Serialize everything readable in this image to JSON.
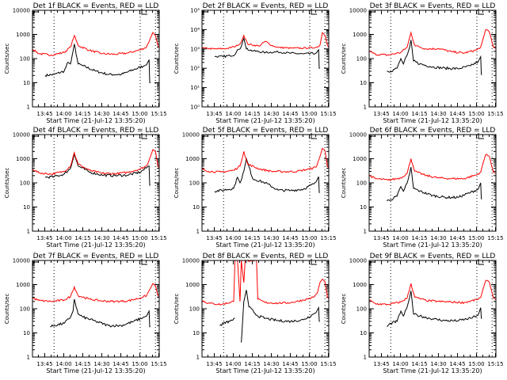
{
  "figure": {
    "legend_note": "BLACK = Events, RED = LLD",
    "xlabel": "Start Time (21-Jul-12 13:35:20)",
    "ylabel": "Counts/sec",
    "x_tick_labels": [
      "13:45",
      "14:00",
      "14:15",
      "14:30",
      "14:45",
      "15:00",
      "15:15"
    ],
    "colors": {
      "events": "#000000",
      "lld": "#ff0000",
      "frame": "#000000"
    }
  },
  "chart_data": [
    {
      "type": "line",
      "title": "Det 1f BLACK = Events, RED = LLD",
      "xlabel": "Start Time (21-Jul-12 13:35:20)",
      "ylabel": "Counts/sec",
      "yscale": "log",
      "ylim": [
        1,
        10000
      ],
      "ytick_style": "plain",
      "xlim_minutes": [
        0,
        100
      ],
      "vlines_minutes": [
        17,
        85,
        97
      ],
      "series": [
        {
          "name": "Events",
          "color": "#000000",
          "x": [
            10,
            17,
            25,
            28,
            30,
            32,
            33,
            36,
            40,
            50,
            60,
            70,
            80,
            88,
            90,
            92,
            92.5,
            93
          ],
          "y": [
            20,
            22,
            30,
            70,
            60,
            200,
            400,
            60,
            50,
            30,
            22,
            22,
            35,
            50,
            55,
            90,
            10,
            10
          ]
        },
        {
          "name": "LLD",
          "color": "#ff0000",
          "x": [
            0,
            5,
            15,
            25,
            30,
            33,
            36,
            45,
            55,
            65,
            75,
            85,
            90,
            93,
            95,
            97,
            99,
            100
          ],
          "y": [
            250,
            160,
            140,
            180,
            300,
            900,
            350,
            220,
            160,
            150,
            170,
            230,
            300,
            700,
            1200,
            900,
            350,
            280
          ]
        }
      ]
    },
    {
      "type": "line",
      "title": "Det 2f BLACK = Events, RED = LLD",
      "xlabel": "Start Time (21-Jul-12 13:35:20)",
      "ylabel": "Counts/sec",
      "yscale": "log",
      "ylim": [
        1,
        100000
      ],
      "ytick_style": "exponent",
      "xlim_minutes": [
        0,
        100
      ],
      "vlines_minutes": [
        17,
        85,
        97
      ],
      "series": [
        {
          "name": "Events",
          "color": "#000000",
          "x": [
            10,
            17,
            22,
            26,
            28,
            30,
            33,
            35,
            40,
            50,
            60,
            70,
            80,
            90,
            92,
            92.5,
            93
          ],
          "y": [
            400,
            400,
            450,
            500,
            900,
            1000,
            3500,
            1000,
            800,
            650,
            700,
            600,
            550,
            600,
            900,
            100,
            100
          ]
        },
        {
          "name": "LLD",
          "color": "#ff0000",
          "x": [
            0,
            10,
            20,
            25,
            28,
            30,
            33,
            36,
            45,
            50,
            55,
            60,
            70,
            80,
            90,
            93,
            95,
            97,
            99,
            100
          ],
          "y": [
            1100,
            1000,
            1050,
            1300,
            1500,
            1800,
            5000,
            1800,
            1400,
            2500,
            1500,
            1200,
            1100,
            1100,
            1200,
            1500,
            7000,
            5000,
            1500,
            1200
          ]
        }
      ]
    },
    {
      "type": "line",
      "title": "Det 3f BLACK = Events, RED = LLD",
      "xlabel": "Start Time (21-Jul-12 13:35:20)",
      "ylabel": "Counts/sec",
      "yscale": "log",
      "ylim": [
        1,
        10000
      ],
      "ytick_style": "plain",
      "xlim_minutes": [
        0,
        100
      ],
      "vlines_minutes": [
        17,
        85,
        97
      ],
      "series": [
        {
          "name": "Events",
          "color": "#000000",
          "x": [
            14,
            17,
            22,
            25,
            27,
            30,
            32,
            33,
            35,
            40,
            50,
            60,
            70,
            80,
            86,
            88,
            88.5,
            89
          ],
          "y": [
            30,
            30,
            40,
            100,
            60,
            140,
            300,
            600,
            80,
            60,
            45,
            40,
            38,
            50,
            75,
            120,
            22,
            22
          ]
        },
        {
          "name": "LLD",
          "color": "#ff0000",
          "x": [
            0,
            5,
            15,
            25,
            30,
            33,
            36,
            45,
            55,
            65,
            75,
            85,
            88,
            90,
            92,
            95,
            98,
            100
          ],
          "y": [
            200,
            150,
            140,
            180,
            300,
            1200,
            350,
            250,
            260,
            190,
            170,
            230,
            300,
            700,
            1600,
            1200,
            300,
            260
          ]
        }
      ]
    },
    {
      "type": "line",
      "title": "Det 4f BLACK = Events, RED = LLD",
      "xlabel": "Start Time (21-Jul-12 13:35:20)",
      "ylabel": "Counts/sec",
      "yscale": "log",
      "ylim": [
        1,
        10000
      ],
      "ytick_style": "plain",
      "xlim_minutes": [
        0,
        100
      ],
      "vlines_minutes": [
        17,
        85,
        97
      ],
      "series": [
        {
          "name": "Events",
          "color": "#000000",
          "x": [
            10,
            17,
            25,
            30,
            33,
            36,
            45,
            55,
            65,
            75,
            85,
            92,
            92.5,
            93
          ],
          "y": [
            170,
            180,
            230,
            400,
            1600,
            500,
            280,
            210,
            200,
            210,
            280,
            500,
            80,
            80
          ]
        },
        {
          "name": "LLD",
          "color": "#ff0000",
          "x": [
            0,
            5,
            15,
            25,
            30,
            33,
            36,
            45,
            55,
            65,
            75,
            85,
            90,
            93,
            95,
            97,
            99,
            100
          ],
          "y": [
            380,
            260,
            230,
            300,
            500,
            1800,
            600,
            330,
            250,
            240,
            270,
            380,
            500,
            1200,
            2400,
            2000,
            500,
            420
          ]
        }
      ]
    },
    {
      "type": "line",
      "title": "Det 5f BLACK = Events, RED = LLD",
      "xlabel": "Start Time (21-Jul-12 13:35:20)",
      "ylabel": "Counts/sec",
      "yscale": "log",
      "ylim": [
        1,
        10000
      ],
      "ytick_style": "plain",
      "xlim_minutes": [
        0,
        100
      ],
      "vlines_minutes": [
        17,
        85,
        97
      ],
      "series": [
        {
          "name": "Events",
          "color": "#000000",
          "x": [
            10,
            17,
            25,
            28,
            30,
            33,
            35,
            40,
            50,
            60,
            70,
            80,
            88,
            90,
            92,
            92.5,
            93
          ],
          "y": [
            45,
            50,
            60,
            170,
            100,
            300,
            1000,
            150,
            100,
            50,
            48,
            55,
            90,
            110,
            180,
            40,
            40
          ]
        },
        {
          "name": "LLD",
          "color": "#ff0000",
          "x": [
            0,
            5,
            15,
            25,
            30,
            33,
            36,
            45,
            55,
            65,
            75,
            85,
            90,
            93,
            95,
            97,
            99,
            100
          ],
          "y": [
            380,
            300,
            280,
            330,
            500,
            2000,
            600,
            380,
            300,
            290,
            300,
            380,
            450,
            1200,
            2700,
            2200,
            480,
            420
          ]
        }
      ]
    },
    {
      "type": "line",
      "title": "Det 6f BLACK = Events, RED = LLD",
      "xlabel": "Start Time (21-Jul-12 13:35:20)",
      "ylabel": "Counts/sec",
      "yscale": "log",
      "ylim": [
        1,
        10000
      ],
      "ytick_style": "plain",
      "xlim_minutes": [
        0,
        100
      ],
      "vlines_minutes": [
        17,
        85,
        97
      ],
      "series": [
        {
          "name": "Events",
          "color": "#000000",
          "x": [
            14,
            17,
            22,
            25,
            27,
            30,
            32,
            33,
            35,
            40,
            50,
            60,
            70,
            80,
            86,
            88,
            88.5,
            89
          ],
          "y": [
            18,
            20,
            28,
            70,
            45,
            100,
            250,
            450,
            60,
            45,
            30,
            25,
            25,
            40,
            55,
            100,
            22,
            22
          ]
        },
        {
          "name": "LLD",
          "color": "#ff0000",
          "x": [
            0,
            5,
            15,
            25,
            30,
            33,
            36,
            45,
            55,
            65,
            75,
            85,
            88,
            90,
            92,
            95,
            98,
            100
          ],
          "y": [
            200,
            150,
            130,
            160,
            250,
            1000,
            300,
            200,
            160,
            150,
            150,
            220,
            280,
            700,
            1500,
            1200,
            280,
            250
          ]
        }
      ]
    },
    {
      "type": "line",
      "title": "Det 7f BLACK = Events, RED = LLD",
      "xlabel": "Start Time (21-Jul-12 13:35:20)",
      "ylabel": "Counts/sec",
      "yscale": "log",
      "ylim": [
        1,
        10000
      ],
      "ytick_style": "plain",
      "xlim_minutes": [
        0,
        100
      ],
      "vlines_minutes": [
        17,
        85,
        97
      ],
      "series": [
        {
          "name": "Events",
          "color": "#000000",
          "x": [
            14,
            17,
            25,
            30,
            32,
            33,
            36,
            40,
            50,
            60,
            70,
            80,
            88,
            90,
            92,
            92.5,
            93
          ],
          "y": [
            18,
            20,
            25,
            45,
            80,
            250,
            60,
            45,
            30,
            20,
            20,
            30,
            45,
            50,
            80,
            18,
            18
          ]
        },
        {
          "name": "LLD",
          "color": "#ff0000",
          "x": [
            0,
            5,
            15,
            25,
            30,
            33,
            36,
            45,
            55,
            65,
            75,
            85,
            90,
            93,
            95,
            97,
            99,
            100
          ],
          "y": [
            280,
            220,
            200,
            230,
            320,
            800,
            350,
            250,
            210,
            200,
            210,
            280,
            350,
            700,
            1100,
            900,
            350,
            310
          ]
        }
      ]
    },
    {
      "type": "line",
      "title": "Det 8f BLACK = Events, RED = LLD",
      "xlabel": "Start Time (21-Jul-12 13:35:20)",
      "ylabel": "Counts/sec",
      "yscale": "log",
      "ylim": [
        1,
        10000
      ],
      "ytick_style": "plain",
      "xlim_minutes": [
        0,
        100
      ],
      "vlines_minutes": [
        17,
        85,
        97
      ],
      "series": [
        {
          "name": "Events",
          "color": "#000000",
          "x": [
            14,
            17,
            22,
            26,
            28,
            31,
            33,
            35,
            37,
            44,
            50,
            60,
            70,
            80,
            88,
            90,
            92,
            92.5,
            93
          ],
          "y": [
            20,
            25,
            30,
            40,
            null,
            4,
            200,
            600,
            120,
            50,
            40,
            32,
            30,
            35,
            60,
            70,
            110,
            30,
            30
          ]
        },
        {
          "name": "LLD",
          "color": "#ff0000",
          "x": [
            0,
            5,
            15,
            25,
            26,
            28,
            30,
            31,
            33,
            34,
            35,
            43,
            44,
            50,
            60,
            70,
            80,
            88,
            91,
            93,
            95,
            97,
            99,
            100
          ],
          "y": [
            220,
            170,
            150,
            200,
            10000,
            10000,
            200,
            10000,
            1200,
            10000,
            10000,
            10000,
            250,
            180,
            170,
            180,
            230,
            300,
            450,
            1200,
            1700,
            1300,
            300,
            260
          ]
        }
      ]
    },
    {
      "type": "line",
      "title": "Det 9f BLACK = Events, RED = LLD",
      "xlabel": "Start Time (21-Jul-12 13:35:20)",
      "ylabel": "Counts/sec",
      "yscale": "log",
      "ylim": [
        1,
        10000
      ],
      "ytick_style": "plain",
      "xlim_minutes": [
        0,
        100
      ],
      "vlines_minutes": [
        17,
        85,
        97
      ],
      "series": [
        {
          "name": "Events",
          "color": "#000000",
          "x": [
            14,
            17,
            22,
            25,
            27,
            30,
            32,
            33,
            35,
            40,
            50,
            60,
            70,
            80,
            86,
            88,
            88.5,
            89
          ],
          "y": [
            18,
            25,
            30,
            80,
            50,
            120,
            300,
            550,
            60,
            50,
            38,
            32,
            32,
            40,
            55,
            110,
            40,
            40
          ]
        },
        {
          "name": "LLD",
          "color": "#ff0000",
          "x": [
            0,
            5,
            15,
            25,
            30,
            33,
            36,
            45,
            55,
            65,
            75,
            85,
            88,
            90,
            92,
            95,
            98,
            100
          ],
          "y": [
            230,
            160,
            150,
            190,
            280,
            1100,
            300,
            220,
            200,
            190,
            180,
            240,
            290,
            700,
            1500,
            1200,
            280,
            240
          ]
        }
      ]
    }
  ]
}
